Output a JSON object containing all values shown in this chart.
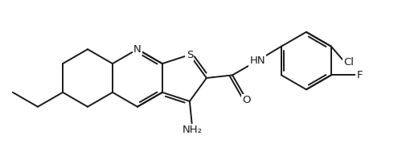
{
  "background_color": "#ffffff",
  "line_color": "#1a1a1a",
  "line_width": 1.4,
  "font_size": 9.5,
  "figsize": [
    5.0,
    1.94
  ],
  "dpi": 100,
  "xlim": [
    0,
    500
  ],
  "ylim": [
    0,
    194
  ]
}
